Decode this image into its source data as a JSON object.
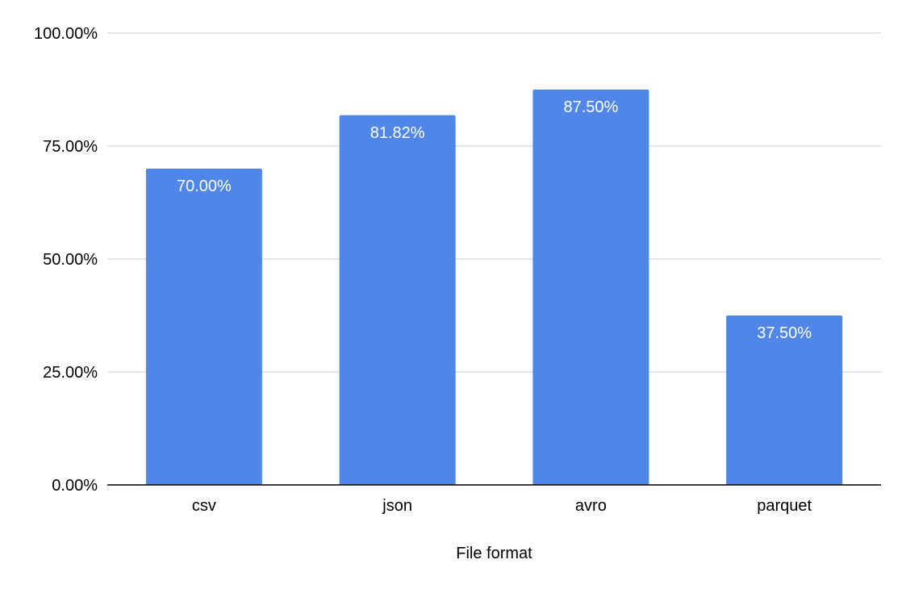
{
  "chart_data": {
    "type": "bar",
    "title": "",
    "xlabel": "File format",
    "ylabel": "",
    "categories": [
      "csv",
      "json",
      "avro",
      "parquet"
    ],
    "values": [
      70.0,
      81.82,
      87.5,
      37.5
    ],
    "data_labels": [
      "70.00%",
      "81.82%",
      "87.50%",
      "37.50%"
    ],
    "ylim": [
      0,
      100
    ],
    "yticks": [
      0,
      25,
      50,
      75,
      100
    ],
    "ytick_labels": [
      "0.00%",
      "25.00%",
      "50.00%",
      "75.00%",
      "100.00%"
    ],
    "grid": true,
    "legend": "none",
    "colors": {
      "bar": "#4f86e8",
      "grid": "#cccccc",
      "axis": "#000000",
      "data_label": "#ffffff"
    }
  }
}
